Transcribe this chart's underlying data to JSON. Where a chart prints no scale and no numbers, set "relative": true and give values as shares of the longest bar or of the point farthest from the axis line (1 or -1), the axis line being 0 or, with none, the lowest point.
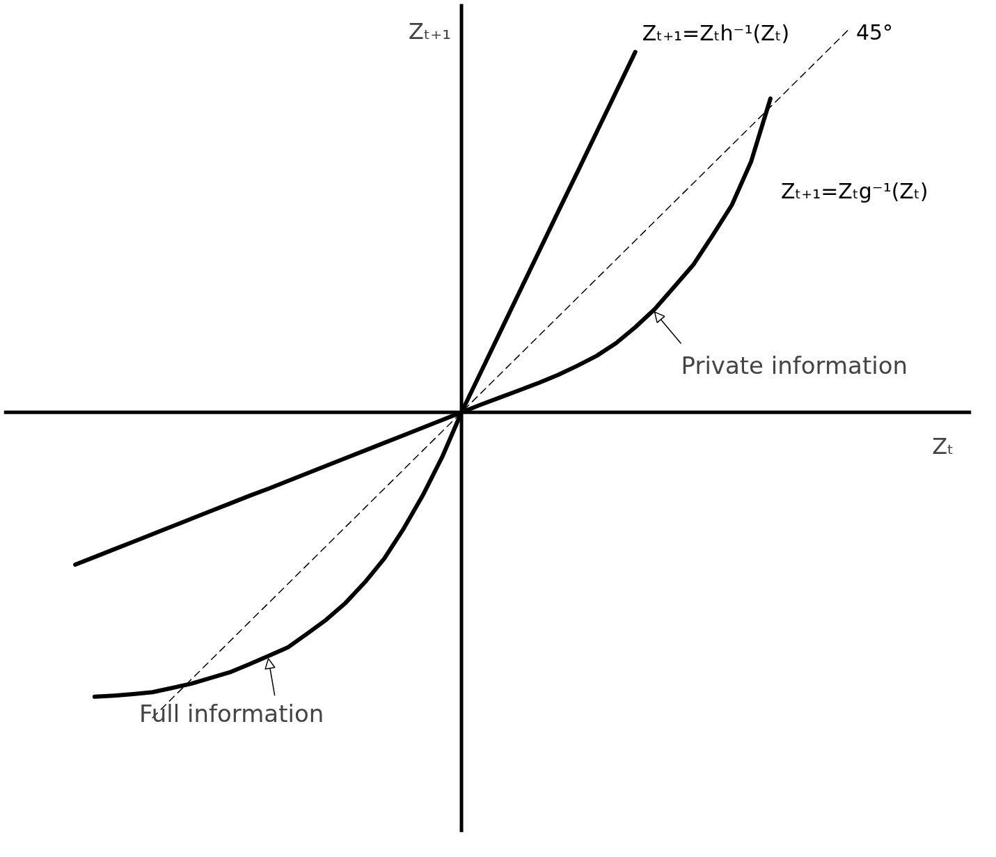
{
  "chart_data": {
    "type": "line",
    "relative": true,
    "xlabel": "Zₜ",
    "ylabel": "Zₜ₊₁",
    "grid": false,
    "marker": "none",
    "categories": [
      null,
      null,
      null,
      null,
      null,
      null,
      null,
      null,
      null,
      null,
      null,
      null,
      null,
      null,
      null,
      null,
      null,
      null,
      null,
      null,
      null,
      null,
      null,
      null,
      null,
      null,
      null,
      null,
      null,
      null,
      null,
      null,
      null,
      null,
      null,
      null,
      null,
      null,
      null,
      null,
      null
    ],
    "series": [
      {
        "name": "Zₜ₊₁=Zₜh⁻¹(Zₜ)",
        "color": "#000000",
        "values": [
          -0.399,
          -0.379,
          -0.359,
          -0.339,
          -0.319,
          -0.299,
          -0.279,
          -0.259,
          -0.239,
          -0.219,
          -0.2,
          -0.18,
          -0.16,
          -0.14,
          -0.12,
          -0.1,
          -0.08,
          -0.06,
          -0.04,
          -0.02,
          0,
          0.105,
          0.21,
          0.315,
          0.42,
          0.525,
          0.629,
          0.734,
          0.839,
          0.944,
          null,
          null,
          null,
          null,
          null,
          null,
          null,
          null,
          null,
          null,
          null
        ]
      },
      {
        "name": "Zₜ₊₁=Zₜg⁻¹(Zₜ)",
        "color": "#000000",
        "values": [
          null,
          -0.745,
          -0.742,
          -0.738,
          -0.733,
          -0.722,
          -0.711,
          -0.696,
          -0.681,
          -0.66,
          -0.638,
          -0.616,
          -0.58,
          -0.543,
          -0.499,
          -0.445,
          -0.383,
          -0.305,
          -0.217,
          -0.117,
          0,
          0.02,
          0.039,
          0.058,
          0.077,
          0.098,
          0.122,
          0.148,
          0.181,
          0.223,
          0.27,
          0.328,
          0.386,
          0.463,
          0.543,
          0.657,
          0.822,
          null,
          null,
          null,
          null
        ]
      },
      {
        "name": "45°",
        "color": "#000000",
        "line_style": "dashed",
        "values": [
          null,
          null,
          null,
          null,
          -0.8,
          -0.75,
          -0.7,
          -0.65,
          -0.6,
          -0.55,
          -0.5,
          -0.45,
          -0.4,
          -0.35,
          -0.3,
          -0.25,
          -0.2,
          -0.15,
          -0.1,
          -0.05,
          0,
          0.05,
          0.1,
          0.15,
          0.2,
          0.25,
          0.3,
          0.35,
          0.4,
          0.45,
          0.5,
          0.55,
          0.6,
          0.65,
          0.7,
          0.75,
          0.8,
          0.85,
          0.9,
          0.95,
          1.0
        ]
      }
    ],
    "annotations": [
      "Private information",
      "Full information"
    ]
  }
}
